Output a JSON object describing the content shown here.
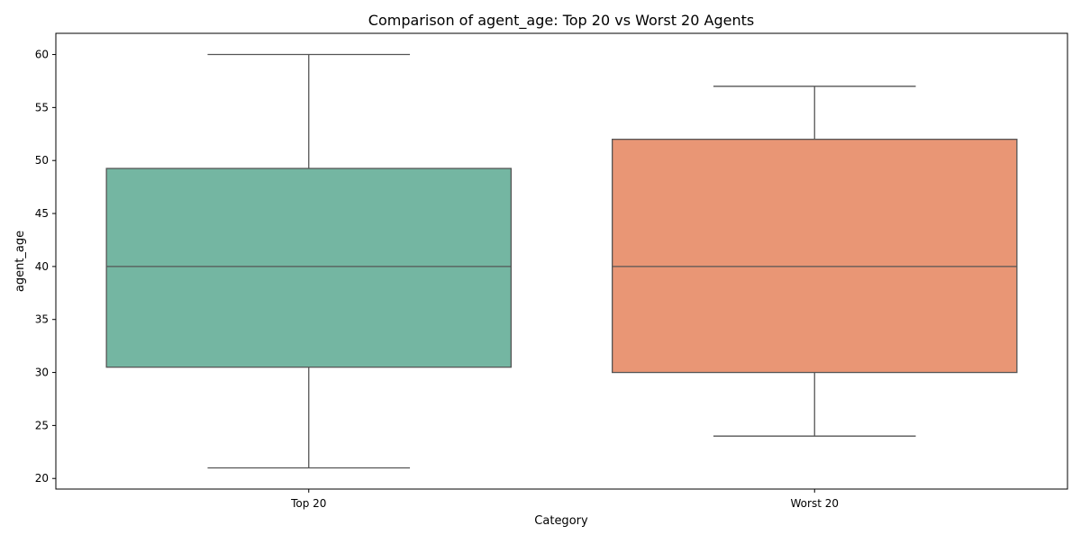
{
  "chart_data": {
    "type": "box",
    "title": "Comparison of agent_age: Top 20 vs Worst 20 Agents",
    "xlabel": "Category",
    "ylabel": "agent_age",
    "categories": [
      "Top 20",
      "Worst 20"
    ],
    "ylim": [
      19,
      62
    ],
    "yticks": [
      20,
      25,
      30,
      35,
      40,
      45,
      50,
      55,
      60
    ],
    "grid": false,
    "legend": "none",
    "boxes": [
      {
        "category": "Top 20",
        "min": 21,
        "q1": 30.5,
        "median": 40,
        "q3": 49.25,
        "max": 60,
        "color": "#74b6a2"
      },
      {
        "category": "Worst 20",
        "min": 24,
        "q1": 30,
        "median": 40,
        "q3": 52,
        "max": 57,
        "color": "#e99675"
      }
    ],
    "line_color": "#555555"
  }
}
